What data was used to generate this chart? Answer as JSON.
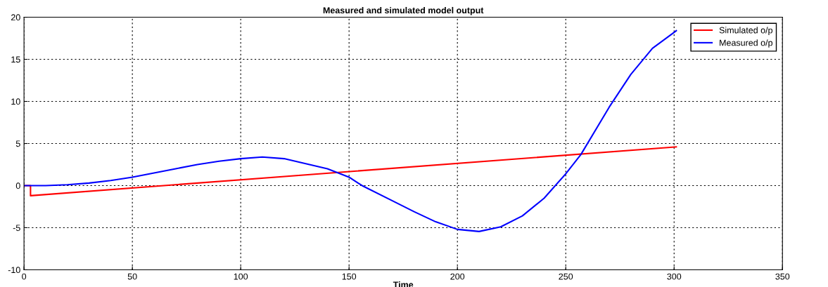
{
  "chart_data": {
    "type": "line",
    "title": "Measured and simulated model output",
    "xlabel": "Time",
    "xlim": [
      0,
      350
    ],
    "xticks": [
      0,
      50,
      100,
      150,
      200,
      250,
      300,
      350
    ],
    "ylim": [
      -10,
      20
    ],
    "yticks": [
      -10,
      -5,
      0,
      5,
      10,
      15,
      20
    ],
    "grid": true,
    "legend": "top right",
    "line_style": "solid",
    "series": [
      {
        "name": "Simulated o/p",
        "color": "#ff0000",
        "x": [
          0,
          3,
          3,
          301
        ],
        "values": [
          0,
          0,
          -1.2,
          4.6
        ]
      },
      {
        "name": "Measured o/p",
        "color": "#0000ff",
        "x": [
          0,
          10,
          20,
          30,
          40,
          50,
          60,
          70,
          80,
          90,
          100,
          110,
          120,
          130,
          140,
          150,
          156,
          170,
          180,
          190,
          200,
          210,
          220,
          230,
          240,
          250,
          257,
          270,
          280,
          290,
          300,
          301
        ],
        "values": [
          0,
          0.0,
          0.1,
          0.3,
          0.6,
          1.0,
          1.5,
          2.0,
          2.5,
          2.9,
          3.2,
          3.4,
          3.2,
          2.6,
          2.0,
          1.0,
          0,
          -1.8,
          -3.1,
          -4.3,
          -5.2,
          -5.45,
          -4.9,
          -3.6,
          -1.5,
          1.4,
          3.7,
          9.3,
          13.2,
          16.3,
          18.2,
          18.4
        ]
      }
    ]
  }
}
